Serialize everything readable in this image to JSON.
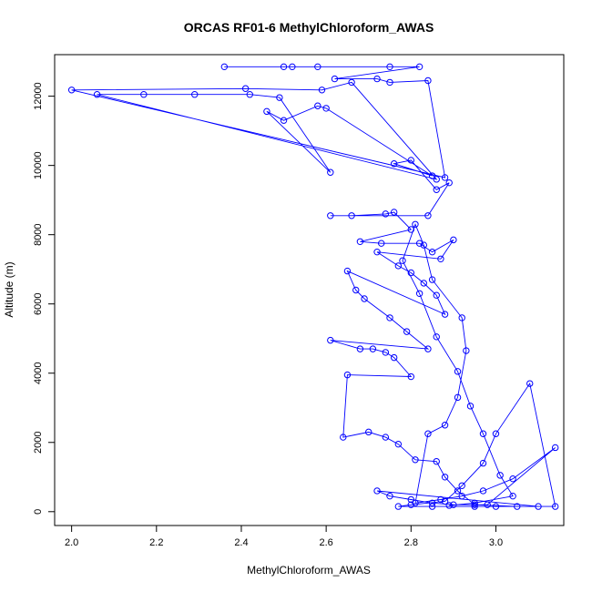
{
  "chart_data": {
    "type": "line",
    "title": "ORCAS RF01-6 MethylChloroform_AWAS",
    "xlabel": "MethylChloroform_AWAS",
    "ylabel": "Altitude (m)",
    "xlim": [
      1.96,
      3.16
    ],
    "ylim": [
      -400,
      13200
    ],
    "xticks": [
      2.0,
      2.2,
      2.4,
      2.6,
      2.8,
      3.0
    ],
    "xtick_labels": [
      "2.0",
      "2.2",
      "2.4",
      "2.6",
      "2.8",
      "3.0"
    ],
    "yticks": [
      0,
      2000,
      4000,
      6000,
      8000,
      10000,
      12000
    ],
    "ytick_labels": [
      "0",
      "2000",
      "4000",
      "6000",
      "8000",
      "10000",
      "12000"
    ],
    "grid": false,
    "marker": "open-circle",
    "color": "#0000ff",
    "series": [
      {
        "values": [
          [
            2.36,
            12850
          ],
          [
            2.5,
            12850
          ],
          [
            2.52,
            12850
          ],
          [
            2.58,
            12850
          ],
          [
            2.75,
            12850
          ],
          [
            2.82,
            12850
          ],
          [
            2.62,
            12500
          ],
          [
            2.72,
            12500
          ],
          [
            2.75,
            12400
          ],
          [
            2.84,
            12450
          ],
          [
            2.88,
            9650
          ],
          [
            2.0,
            12180
          ],
          [
            2.41,
            12220
          ],
          [
            2.59,
            12180
          ],
          [
            2.66,
            12400
          ],
          [
            2.86,
            9600
          ],
          [
            2.06,
            12050
          ],
          [
            2.17,
            12050
          ],
          [
            2.29,
            12050
          ],
          [
            2.42,
            12050
          ],
          [
            2.49,
            11960
          ],
          [
            2.61,
            9800
          ],
          [
            2.46,
            11560
          ],
          [
            2.5,
            11300
          ],
          [
            2.58,
            11720
          ],
          [
            2.6,
            11650
          ],
          [
            2.85,
            9700
          ],
          [
            2.76,
            10050
          ],
          [
            2.8,
            10150
          ],
          [
            2.86,
            9300
          ],
          [
            2.89,
            9500
          ],
          [
            2.84,
            8550
          ],
          [
            2.61,
            8550
          ],
          [
            2.66,
            8550
          ],
          [
            2.74,
            8600
          ],
          [
            2.76,
            8650
          ],
          [
            2.8,
            8150
          ],
          [
            2.68,
            7800
          ],
          [
            2.73,
            7750
          ],
          [
            2.82,
            7750
          ],
          [
            2.85,
            7500
          ],
          [
            2.9,
            7850
          ],
          [
            2.87,
            7300
          ],
          [
            2.72,
            7500
          ],
          [
            2.77,
            7100
          ],
          [
            2.8,
            6900
          ],
          [
            2.83,
            6600
          ],
          [
            2.86,
            6250
          ],
          [
            2.88,
            5700
          ],
          [
            2.65,
            6950
          ],
          [
            2.67,
            6400
          ],
          [
            2.69,
            6150
          ],
          [
            2.75,
            5600
          ],
          [
            2.79,
            5200
          ],
          [
            2.84,
            4700
          ],
          [
            2.61,
            4950
          ],
          [
            2.68,
            4700
          ],
          [
            2.71,
            4700
          ],
          [
            2.74,
            4600
          ],
          [
            2.76,
            4450
          ],
          [
            2.8,
            3900
          ],
          [
            2.65,
            3950
          ],
          [
            2.64,
            2150
          ],
          [
            2.7,
            2300
          ],
          [
            2.74,
            2150
          ],
          [
            2.77,
            1950
          ],
          [
            2.81,
            1500
          ],
          [
            2.86,
            1450
          ],
          [
            2.88,
            1000
          ],
          [
            2.91,
            600
          ],
          [
            2.95,
            200
          ],
          [
            3.05,
            150
          ],
          [
            3.14,
            150
          ],
          [
            3.08,
            3700
          ],
          [
            3.0,
            2250
          ],
          [
            2.97,
            1400
          ],
          [
            2.92,
            750
          ],
          [
            2.88,
            300
          ],
          [
            2.8,
            200
          ],
          [
            2.77,
            150
          ],
          [
            2.85,
            150
          ],
          [
            2.95,
            150
          ],
          [
            3.0,
            150
          ],
          [
            3.1,
            150
          ],
          [
            2.72,
            600
          ],
          [
            2.75,
            450
          ],
          [
            2.8,
            350
          ],
          [
            2.85,
            250
          ],
          [
            2.9,
            200
          ],
          [
            2.98,
            200
          ],
          [
            3.14,
            1850
          ],
          [
            3.04,
            950
          ],
          [
            2.97,
            600
          ],
          [
            2.92,
            450
          ],
          [
            2.87,
            350
          ],
          [
            2.81,
            250
          ],
          [
            2.84,
            2250
          ],
          [
            2.88,
            2500
          ],
          [
            2.91,
            3300
          ],
          [
            2.93,
            4650
          ],
          [
            2.92,
            5600
          ],
          [
            2.85,
            6700
          ],
          [
            2.83,
            7700
          ],
          [
            2.81,
            8300
          ],
          [
            2.78,
            7250
          ],
          [
            2.82,
            6300
          ],
          [
            2.86,
            5050
          ],
          [
            2.91,
            4050
          ],
          [
            2.94,
            3050
          ],
          [
            2.97,
            2250
          ],
          [
            3.01,
            1050
          ],
          [
            3.04,
            450
          ],
          [
            2.95,
            250
          ],
          [
            2.89,
            180
          ]
        ]
      }
    ]
  }
}
